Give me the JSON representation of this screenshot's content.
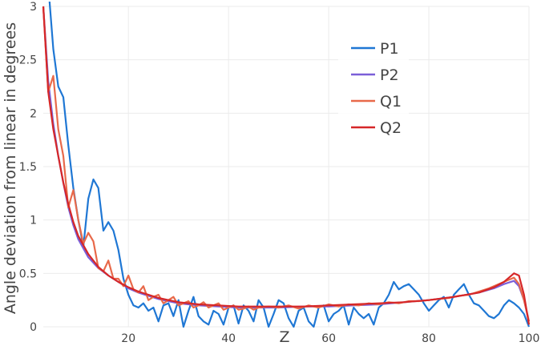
{
  "chart_data": {
    "type": "line",
    "xlabel": "Z",
    "ylabel": "Angle deviation from linear in degrees",
    "xlim": [
      3,
      100
    ],
    "ylim": [
      0,
      3
    ],
    "grid": true,
    "legend_position": "top-right",
    "xticks": [
      20,
      40,
      60,
      80,
      100
    ],
    "yticks": [
      0,
      0.5,
      1,
      1.5,
      2,
      2.5,
      3
    ],
    "ytick_labels": [
      "0",
      "0.5",
      "1",
      "1.5",
      "2",
      "2.5",
      "3"
    ],
    "series": [
      {
        "name": "P1",
        "color": "#1f77d4",
        "points": [
          [
            4,
            3.2
          ],
          [
            5,
            2.6
          ],
          [
            6,
            2.25
          ],
          [
            7,
            2.15
          ],
          [
            8,
            1.7
          ],
          [
            9,
            1.3
          ],
          [
            10,
            1.0
          ],
          [
            11,
            0.75
          ],
          [
            12,
            1.2
          ],
          [
            13,
            1.38
          ],
          [
            14,
            1.3
          ],
          [
            15,
            0.9
          ],
          [
            16,
            0.98
          ],
          [
            17,
            0.9
          ],
          [
            18,
            0.72
          ],
          [
            19,
            0.45
          ],
          [
            20,
            0.3
          ],
          [
            21,
            0.2
          ],
          [
            22,
            0.18
          ],
          [
            23,
            0.22
          ],
          [
            24,
            0.15
          ],
          [
            25,
            0.18
          ],
          [
            26,
            0.05
          ],
          [
            27,
            0.2
          ],
          [
            28,
            0.22
          ],
          [
            29,
            0.1
          ],
          [
            30,
            0.25
          ],
          [
            31,
            0.0
          ],
          [
            32,
            0.15
          ],
          [
            33,
            0.28
          ],
          [
            34,
            0.1
          ],
          [
            35,
            0.05
          ],
          [
            36,
            0.02
          ],
          [
            37,
            0.15
          ],
          [
            38,
            0.12
          ],
          [
            39,
            0.02
          ],
          [
            40,
            0.18
          ],
          [
            41,
            0.2
          ],
          [
            42,
            0.03
          ],
          [
            43,
            0.2
          ],
          [
            44,
            0.15
          ],
          [
            45,
            0.05
          ],
          [
            46,
            0.25
          ],
          [
            47,
            0.18
          ],
          [
            48,
            0.0
          ],
          [
            49,
            0.12
          ],
          [
            50,
            0.25
          ],
          [
            51,
            0.22
          ],
          [
            52,
            0.08
          ],
          [
            53,
            0.0
          ],
          [
            54,
            0.15
          ],
          [
            55,
            0.18
          ],
          [
            56,
            0.05
          ],
          [
            57,
            0.0
          ],
          [
            58,
            0.18
          ],
          [
            59,
            0.2
          ],
          [
            60,
            0.05
          ],
          [
            61,
            0.12
          ],
          [
            62,
            0.15
          ],
          [
            63,
            0.2
          ],
          [
            64,
            0.02
          ],
          [
            65,
            0.18
          ],
          [
            66,
            0.12
          ],
          [
            67,
            0.08
          ],
          [
            68,
            0.12
          ],
          [
            69,
            0.02
          ],
          [
            70,
            0.18
          ],
          [
            71,
            0.22
          ],
          [
            72,
            0.3
          ],
          [
            73,
            0.42
          ],
          [
            74,
            0.35
          ],
          [
            75,
            0.38
          ],
          [
            76,
            0.4
          ],
          [
            77,
            0.35
          ],
          [
            78,
            0.3
          ],
          [
            79,
            0.22
          ],
          [
            80,
            0.15
          ],
          [
            81,
            0.2
          ],
          [
            82,
            0.25
          ],
          [
            83,
            0.28
          ],
          [
            84,
            0.18
          ],
          [
            85,
            0.3
          ],
          [
            86,
            0.35
          ],
          [
            87,
            0.4
          ],
          [
            88,
            0.3
          ],
          [
            89,
            0.22
          ],
          [
            90,
            0.2
          ],
          [
            91,
            0.15
          ],
          [
            92,
            0.1
          ],
          [
            93,
            0.08
          ],
          [
            94,
            0.12
          ],
          [
            95,
            0.2
          ],
          [
            96,
            0.25
          ],
          [
            97,
            0.22
          ],
          [
            98,
            0.18
          ],
          [
            99,
            0.12
          ],
          [
            100,
            0.0
          ]
        ]
      },
      {
        "name": "P2",
        "color": "#7b5fd8",
        "points": [
          [
            3,
            3.0
          ],
          [
            4,
            2.3
          ],
          [
            5,
            1.9
          ],
          [
            6,
            1.6
          ],
          [
            7,
            1.35
          ],
          [
            8,
            1.12
          ],
          [
            9,
            0.95
          ],
          [
            10,
            0.82
          ],
          [
            12,
            0.65
          ],
          [
            14,
            0.55
          ],
          [
            16,
            0.48
          ],
          [
            18,
            0.42
          ],
          [
            20,
            0.36
          ],
          [
            22,
            0.32
          ],
          [
            24,
            0.29
          ],
          [
            26,
            0.26
          ],
          [
            28,
            0.24
          ],
          [
            30,
            0.22
          ],
          [
            34,
            0.2
          ],
          [
            38,
            0.19
          ],
          [
            42,
            0.18
          ],
          [
            46,
            0.18
          ],
          [
            50,
            0.18
          ],
          [
            55,
            0.19
          ],
          [
            60,
            0.19
          ],
          [
            65,
            0.2
          ],
          [
            70,
            0.21
          ],
          [
            75,
            0.23
          ],
          [
            80,
            0.25
          ],
          [
            85,
            0.28
          ],
          [
            90,
            0.32
          ],
          [
            93,
            0.36
          ],
          [
            95,
            0.4
          ],
          [
            97,
            0.43
          ],
          [
            98,
            0.38
          ],
          [
            99,
            0.25
          ],
          [
            100,
            0.05
          ]
        ]
      },
      {
        "name": "Q1",
        "color": "#e8694a",
        "points": [
          [
            3,
            3.0
          ],
          [
            4,
            2.2
          ],
          [
            5,
            2.35
          ],
          [
            6,
            1.85
          ],
          [
            7,
            1.6
          ],
          [
            8,
            1.12
          ],
          [
            9,
            1.28
          ],
          [
            10,
            1.0
          ],
          [
            11,
            0.78
          ],
          [
            12,
            0.88
          ],
          [
            13,
            0.8
          ],
          [
            14,
            0.55
          ],
          [
            15,
            0.52
          ],
          [
            16,
            0.62
          ],
          [
            17,
            0.45
          ],
          [
            18,
            0.45
          ],
          [
            19,
            0.38
          ],
          [
            20,
            0.48
          ],
          [
            21,
            0.35
          ],
          [
            22,
            0.32
          ],
          [
            23,
            0.38
          ],
          [
            24,
            0.25
          ],
          [
            25,
            0.28
          ],
          [
            26,
            0.3
          ],
          [
            27,
            0.22
          ],
          [
            28,
            0.25
          ],
          [
            29,
            0.28
          ],
          [
            30,
            0.2
          ],
          [
            31,
            0.22
          ],
          [
            32,
            0.24
          ],
          [
            33,
            0.18
          ],
          [
            34,
            0.2
          ],
          [
            35,
            0.23
          ],
          [
            36,
            0.18
          ],
          [
            37,
            0.2
          ],
          [
            38,
            0.22
          ],
          [
            39,
            0.16
          ],
          [
            40,
            0.18
          ],
          [
            41,
            0.2
          ],
          [
            42,
            0.16
          ],
          [
            43,
            0.17
          ],
          [
            44,
            0.19
          ],
          [
            45,
            0.16
          ],
          [
            46,
            0.18
          ],
          [
            48,
            0.19
          ],
          [
            50,
            0.18
          ],
          [
            52,
            0.2
          ],
          [
            54,
            0.17
          ],
          [
            56,
            0.2
          ],
          [
            58,
            0.18
          ],
          [
            60,
            0.21
          ],
          [
            62,
            0.19
          ],
          [
            64,
            0.21
          ],
          [
            66,
            0.2
          ],
          [
            68,
            0.22
          ],
          [
            70,
            0.21
          ],
          [
            72,
            0.23
          ],
          [
            74,
            0.22
          ],
          [
            76,
            0.24
          ],
          [
            78,
            0.24
          ],
          [
            80,
            0.25
          ],
          [
            82,
            0.26
          ],
          [
            84,
            0.27
          ],
          [
            86,
            0.29
          ],
          [
            88,
            0.3
          ],
          [
            90,
            0.33
          ],
          [
            92,
            0.36
          ],
          [
            94,
            0.4
          ],
          [
            96,
            0.44
          ],
          [
            97,
            0.46
          ],
          [
            98,
            0.4
          ],
          [
            99,
            0.25
          ],
          [
            100,
            0.05
          ]
        ]
      },
      {
        "name": "Q2",
        "color": "#d62728",
        "points": [
          [
            3,
            3.0
          ],
          [
            4,
            2.2
          ],
          [
            5,
            1.85
          ],
          [
            6,
            1.6
          ],
          [
            7,
            1.35
          ],
          [
            8,
            1.15
          ],
          [
            9,
            0.98
          ],
          [
            10,
            0.85
          ],
          [
            12,
            0.68
          ],
          [
            14,
            0.56
          ],
          [
            16,
            0.48
          ],
          [
            18,
            0.42
          ],
          [
            20,
            0.37
          ],
          [
            22,
            0.33
          ],
          [
            24,
            0.3
          ],
          [
            26,
            0.27
          ],
          [
            28,
            0.25
          ],
          [
            30,
            0.23
          ],
          [
            34,
            0.21
          ],
          [
            38,
            0.2
          ],
          [
            42,
            0.19
          ],
          [
            46,
            0.19
          ],
          [
            50,
            0.19
          ],
          [
            55,
            0.19
          ],
          [
            60,
            0.2
          ],
          [
            65,
            0.21
          ],
          [
            70,
            0.22
          ],
          [
            75,
            0.23
          ],
          [
            80,
            0.25
          ],
          [
            85,
            0.28
          ],
          [
            90,
            0.32
          ],
          [
            93,
            0.37
          ],
          [
            95,
            0.42
          ],
          [
            96,
            0.46
          ],
          [
            97,
            0.5
          ],
          [
            98,
            0.48
          ],
          [
            99,
            0.3
          ],
          [
            100,
            0.02
          ]
        ]
      }
    ]
  }
}
